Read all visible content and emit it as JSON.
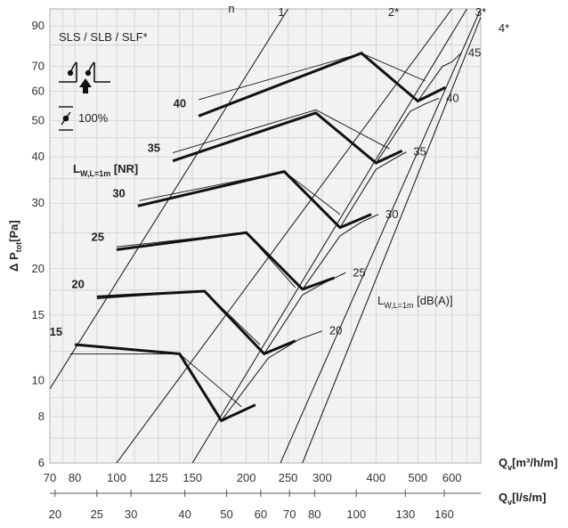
{
  "chart_data": {
    "type": "line",
    "title": "SLS / SLB / SLF*",
    "damper_label": "100%",
    "xlabel_top_main": "Q",
    "xlabel_top_sub": "v",
    "xlabel_top_unit": "[m³/h/m]",
    "xlabel_bottom_main": "Q",
    "xlabel_bottom_sub": "v",
    "xlabel_bottom_unit": "[l/s/m]",
    "ylabel_main": "Δ P",
    "ylabel_sub": "tot",
    "ylabel_unit": "[Pa]",
    "x_scale": "log",
    "y_scale": "log",
    "xlim_m3h": [
      70,
      700
    ],
    "ylim_pa": [
      6,
      100
    ],
    "grid": true,
    "x_ticks_m3h": [
      "70",
      "80",
      "100",
      "125",
      "150",
      "200",
      "250",
      "300",
      "400",
      "500",
      "600"
    ],
    "x_ticks_ls": [
      "20",
      "25",
      "30",
      "40",
      "50",
      "60",
      "70",
      "80",
      "100",
      "130",
      "160"
    ],
    "y_ticks": [
      "6",
      "8",
      "10",
      "15",
      "20",
      "30",
      "40",
      "50",
      "60",
      "70",
      "90"
    ],
    "slot_lines": [
      {
        "name": "n",
        "points": [
          [
            100,
            6
          ],
          [
            600,
            100
          ]
        ]
      },
      {
        "name": "1",
        "points": [
          [
            70,
            9.5
          ],
          [
            250,
            100
          ]
        ]
      },
      {
        "name": "2*",
        "points": [
          [
            150,
            6
          ],
          [
            650,
            100
          ]
        ]
      },
      {
        "name": "3*",
        "points": [
          [
            240,
            6
          ],
          [
            700,
            100
          ]
        ]
      },
      {
        "name": "4*",
        "points": [
          [
            270,
            6
          ],
          [
            700,
            95
          ]
        ]
      }
    ],
    "nr_label": {
      "main": "L",
      "sub": "W,L=1m",
      "unit": " [NR]"
    },
    "dba_label": {
      "main": "L",
      "sub": "W,L=1m",
      "unit": " [dB(A)]"
    },
    "nr_curves": [
      {
        "name": "15",
        "points": [
          [
            80,
            12.5
          ],
          [
            140,
            11.8
          ],
          [
            175,
            7.8
          ],
          [
            210,
            8.6
          ]
        ]
      },
      {
        "name": "20",
        "points": [
          [
            90,
            16.8
          ],
          [
            160,
            17.4
          ],
          [
            220,
            11.8
          ],
          [
            260,
            12.8
          ]
        ]
      },
      {
        "name": "25",
        "points": [
          [
            100,
            22.5
          ],
          [
            200,
            25
          ],
          [
            270,
            17.6
          ],
          [
            320,
            18.9
          ]
        ]
      },
      {
        "name": "30",
        "points": [
          [
            112,
            29.5
          ],
          [
            245,
            36.5
          ],
          [
            330,
            25.8
          ],
          [
            390,
            28
          ]
        ]
      },
      {
        "name": "35",
        "points": [
          [
            135,
            39
          ],
          [
            290,
            52.5
          ],
          [
            400,
            38.5
          ],
          [
            460,
            41.5
          ]
        ]
      },
      {
        "name": "40",
        "points": [
          [
            155,
            51.5
          ],
          [
            370,
            76
          ],
          [
            500,
            56.5
          ],
          [
            580,
            61.5
          ]
        ]
      }
    ],
    "dba_curves": [
      {
        "name": "20",
        "points": [
          [
            175,
            7.8
          ],
          [
            225,
            11.5
          ],
          [
            265,
            12.9
          ],
          [
            300,
            13.6
          ]
        ]
      },
      {
        "name": "25",
        "points": [
          [
            220,
            11.8
          ],
          [
            270,
            17
          ],
          [
            300,
            18.2
          ],
          [
            340,
            19.5
          ]
        ]
      },
      {
        "name": "30",
        "points": [
          [
            270,
            17.6
          ],
          [
            330,
            24.5
          ],
          [
            370,
            26.7
          ],
          [
            405,
            28
          ]
        ]
      },
      {
        "name": "35",
        "points": [
          [
            330,
            25.8
          ],
          [
            400,
            37
          ],
          [
            440,
            39.5
          ],
          [
            470,
            41.2
          ]
        ]
      },
      {
        "name": "40",
        "points": [
          [
            400,
            38.5
          ],
          [
            480,
            53
          ],
          [
            520,
            55.5
          ],
          [
            560,
            57.5
          ]
        ]
      },
      {
        "name": "45",
        "points": [
          [
            500,
            56.5
          ],
          [
            570,
            70
          ],
          [
            600,
            72
          ],
          [
            630,
            76
          ]
        ]
      }
    ],
    "nr_thin_upper": [
      {
        "name": "15",
        "points": [
          [
            78,
            11.8
          ],
          [
            140,
            11.8
          ],
          [
            195,
            8.5
          ]
        ]
      },
      {
        "name": "20",
        "points": [
          [
            90,
            16.6
          ],
          [
            160,
            17.4
          ],
          [
            215,
            12.5
          ]
        ]
      },
      {
        "name": "25",
        "points": [
          [
            100,
            22.9
          ],
          [
            200,
            25
          ],
          [
            260,
            17.8
          ]
        ]
      },
      {
        "name": "30",
        "points": [
          [
            113,
            30.5
          ],
          [
            245,
            36.5
          ],
          [
            330,
            28
          ]
        ]
      },
      {
        "name": "35",
        "points": [
          [
            135,
            41
          ],
          [
            290,
            53.5
          ],
          [
            430,
            42
          ]
        ]
      },
      {
        "name": "40",
        "points": [
          [
            155,
            57
          ],
          [
            370,
            76
          ],
          [
            520,
            64
          ]
        ]
      }
    ]
  }
}
